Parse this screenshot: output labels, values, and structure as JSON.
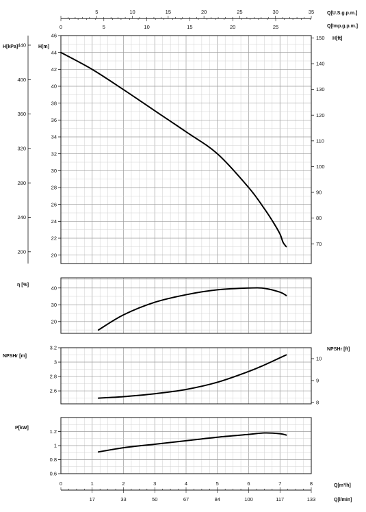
{
  "chart_data": {
    "type": "line",
    "x_axes": {
      "us_gpm": {
        "label": "Q[U.S.g.p.m.]",
        "range": [
          0,
          35
        ],
        "ticks": [
          5,
          10,
          15,
          20,
          25,
          30,
          35
        ]
      },
      "imp_gpm": {
        "label": "Q[Imp.g.p.m.]",
        "range": [
          0,
          29.14
        ],
        "ticks": [
          0,
          5,
          10,
          15,
          20,
          25
        ]
      },
      "m3h": {
        "label": "Q[m³/h]",
        "range": [
          0,
          8
        ],
        "ticks": [
          0,
          1,
          2,
          3,
          4,
          5,
          6,
          7,
          8
        ]
      },
      "lmin": {
        "label": "Q[l/min]",
        "tick_labels": [
          "17",
          "33",
          "50",
          "67",
          "84",
          "100",
          "117",
          "133"
        ],
        "tick_positions_m3h": [
          1,
          2,
          3,
          4,
          5,
          6,
          7,
          8
        ]
      }
    },
    "panels": [
      {
        "id": "head",
        "ylabel_left_outer": "H[kPa]",
        "ylabel_left": "H[m]",
        "ylabel_right": "H[ft]",
        "ylim": [
          19,
          46
        ],
        "yticks": [
          20,
          22,
          24,
          26,
          28,
          30,
          32,
          34,
          36,
          38,
          40,
          42,
          44,
          46
        ],
        "yticks_kpa": [
          200,
          240,
          280,
          320,
          360,
          400,
          440
        ],
        "yticks_ft": [
          70,
          80,
          90,
          100,
          110,
          120,
          130,
          140,
          150
        ],
        "series": [
          {
            "x": [
              0,
              1,
              2,
              3,
              4,
              5,
              6,
              6.5,
              6.8,
              7.0,
              7.1,
              7.2
            ],
            "values": [
              44,
              42,
              39.6,
              37.1,
              34.6,
              32,
              28,
              25.5,
              23.8,
              22.5,
              21.5,
              21
            ]
          }
        ]
      },
      {
        "id": "efficiency",
        "ylabel": "η [%]",
        "ylim": [
          13,
          46
        ],
        "yticks": [
          20,
          30,
          40
        ],
        "series": [
          {
            "x": [
              1.2,
              2,
              3,
              4,
              5,
              6,
              6.5,
              7.0,
              7.2
            ],
            "values": [
              15,
              24,
              31.5,
              36,
              38.9,
              40,
              39.8,
              37.5,
              35.5
            ]
          }
        ]
      },
      {
        "id": "npsh",
        "ylabel": "NPSHr [m]",
        "ylabel_right": "NPSHr [ft]",
        "ylim": [
          2.42,
          3.2
        ],
        "yticks": [
          2.6,
          2.8,
          3,
          3.2
        ],
        "yticks_ft": [
          8,
          9,
          10
        ],
        "series": [
          {
            "x": [
              1.2,
              2,
              3,
              4,
              5,
              6,
              6.5,
              7.0,
              7.2
            ],
            "values": [
              2.5,
              2.52,
              2.56,
              2.62,
              2.72,
              2.87,
              2.96,
              3.06,
              3.1
            ]
          }
        ]
      },
      {
        "id": "power",
        "ylabel": "P[kW]",
        "ylim": [
          0.6,
          1.4
        ],
        "yticks": [
          0.6,
          0.8,
          1,
          1.2
        ],
        "series": [
          {
            "x": [
              1.2,
              2,
              3,
              4,
              5,
              6,
              6.5,
              7.0,
              7.2
            ],
            "values": [
              0.91,
              0.97,
              1.02,
              1.07,
              1.12,
              1.16,
              1.18,
              1.17,
              1.15
            ]
          }
        ]
      }
    ],
    "grid": true
  }
}
